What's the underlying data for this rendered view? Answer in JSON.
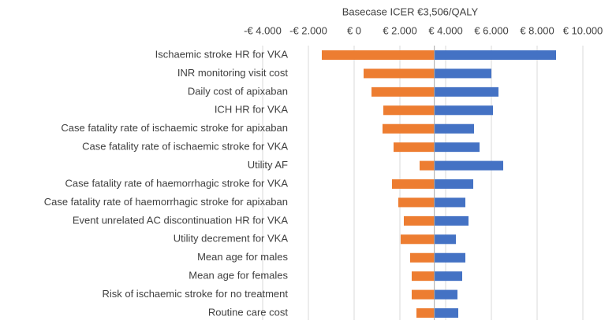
{
  "chart_data": {
    "type": "tornado",
    "title": "Basecase ICER €3,506/QALY",
    "base": 3506,
    "categories": [
      "Ischaemic stroke HR for VKA",
      "INR monitoring visit cost",
      "Daily cost of apixaban",
      "ICH HR for VKA",
      "Case fatality rate of ischaemic stroke for apixaban",
      "Case fatality rate of ischaemic stroke for VKA",
      "Utility AF",
      "Case fatality rate of haemorrhagic stroke for VKA",
      "Case fatality rate of haemorrhagic stroke for apixaban",
      "Event unrelated AC discontinuation HR for VKA",
      "Utility decrement for VKA",
      "Mean age for males",
      "Mean age for females",
      "Risk of ischaemic stroke for no treatment",
      "Routine care cost"
    ],
    "series": [
      {
        "color": "#ed7d31",
        "values": [
          -1414,
          414,
          759,
          1276,
          1241,
          1724,
          2862,
          1655,
          1931,
          2172,
          2034,
          2448,
          2517,
          2517,
          2724
        ]
      },
      {
        "color": "#4472c4",
        "values": [
          8828,
          6000,
          6310,
          6069,
          5241,
          5483,
          6517,
          5207,
          4862,
          5000,
          4448,
          4862,
          4724,
          4517,
          4552
        ]
      }
    ],
    "xlim": [
      -4000,
      10000
    ],
    "xticks": [
      {
        "value": -4000,
        "label": "-€ 4.000"
      },
      {
        "value": -2000,
        "label": "-€ 2.000"
      },
      {
        "value": 0,
        "label": "€ 0"
      },
      {
        "value": 2000,
        "label": "€ 2.000"
      },
      {
        "value": 4000,
        "label": "€ 4.000"
      },
      {
        "value": 6000,
        "label": "€ 6.000"
      },
      {
        "value": 8000,
        "label": "€ 8.000"
      },
      {
        "value": 10000,
        "label": "€ 10.000"
      }
    ],
    "grid": true
  }
}
